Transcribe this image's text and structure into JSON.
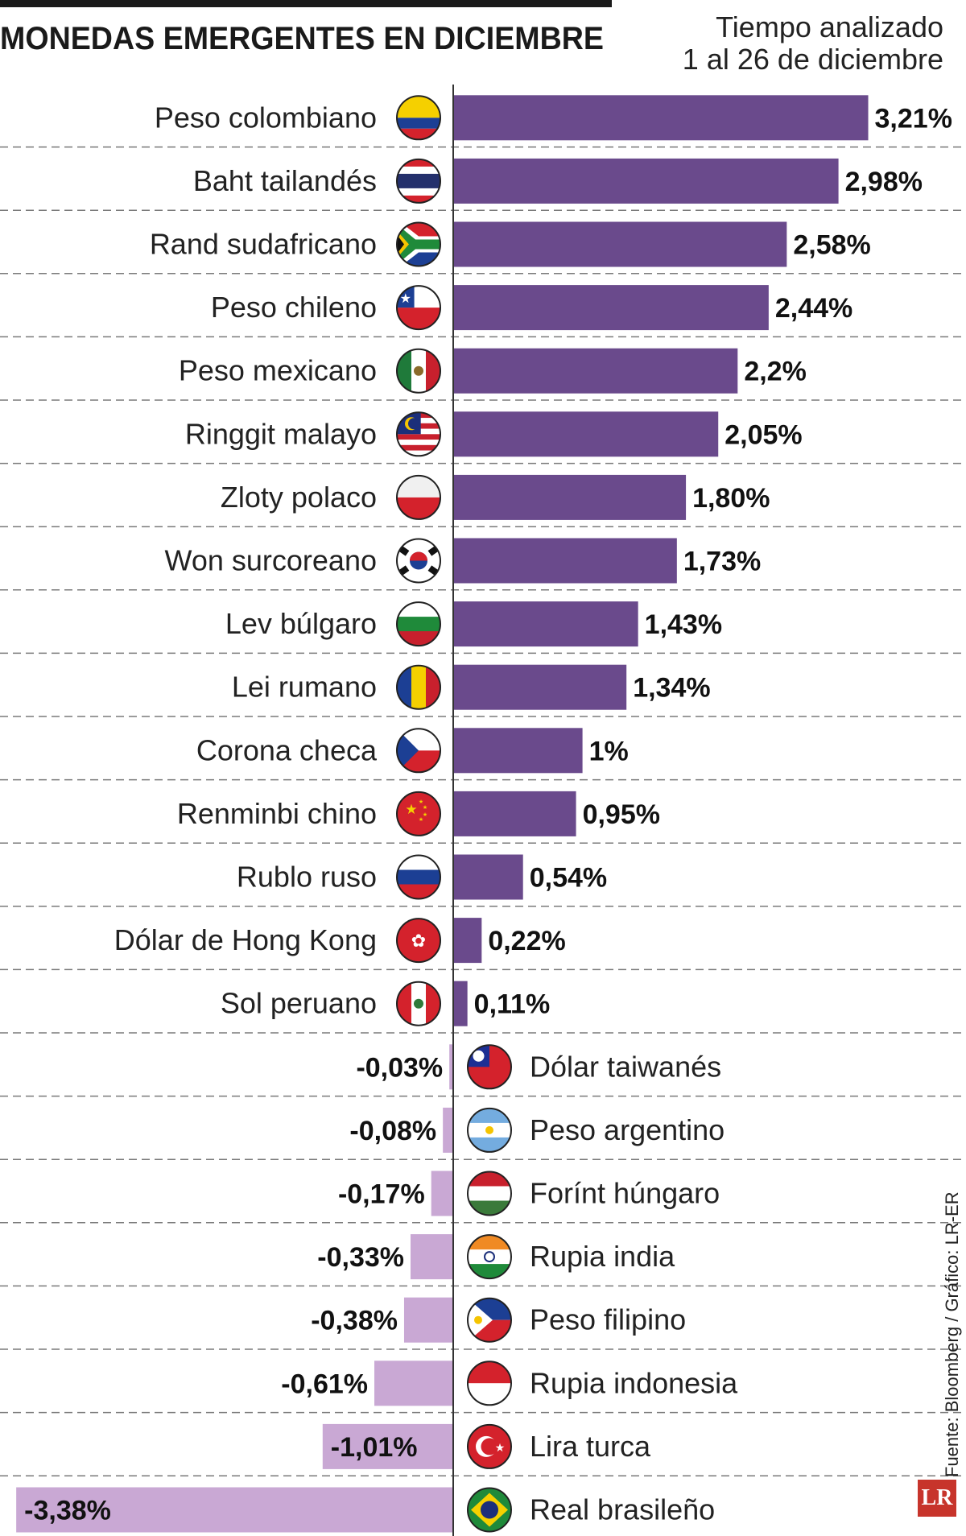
{
  "header": {
    "title": "MONEDAS EMERGENTES EN DICIEMBRE",
    "subtitle_line1": "Tiempo analizado",
    "subtitle_line2": "1 al 26 de diciembre"
  },
  "footer": {
    "source": "Fuente: Bloomberg / Gráfico: LR-ER",
    "logo_text": "LR"
  },
  "colors": {
    "positive": "#6a4a8c",
    "negative": "#c9a8d4",
    "gridline": "#7a7a7a",
    "axis": "#333333"
  },
  "chart_data": {
    "type": "bar",
    "orientation": "horizontal",
    "unit": "%",
    "title": "MONEDAS EMERGENTES EN DICIEMBRE",
    "xlabel": "",
    "ylabel": "",
    "grid": "dashed horizontal separators",
    "categories": [
      "Peso colombiano",
      "Baht tailandés",
      "Rand sudafricano",
      "Peso chileno",
      "Peso mexicano",
      "Ringgit malayo",
      "Zloty polaco",
      "Won surcoreano",
      "Lev búlgaro",
      "Lei rumano",
      "Corona checa",
      "Renminbi chino",
      "Rublo ruso",
      "Dólar de Hong Kong",
      "Sol peruano",
      "Dólar taiwanés",
      "Peso argentino",
      "Forínt húngaro",
      "Rupia india",
      "Peso filipino",
      "Rupia indonesia",
      "Lira turca",
      "Real brasileño"
    ],
    "values": [
      3.21,
      2.98,
      2.58,
      2.44,
      2.2,
      2.05,
      1.8,
      1.73,
      1.43,
      1.34,
      1.0,
      0.95,
      0.54,
      0.22,
      0.11,
      -0.03,
      -0.08,
      -0.17,
      -0.33,
      -0.38,
      -0.61,
      -1.01,
      -3.38
    ],
    "labels": [
      "3,21%",
      "2,98%",
      "2,58%",
      "2,44%",
      "2,2%",
      "2,05%",
      "1,80%",
      "1,73%",
      "1,43%",
      "1,34%",
      "1%",
      "0,95%",
      "0,54%",
      "0,22%",
      "0,11%",
      "-0,03%",
      "-0,08%",
      "-0,17%",
      "-0,33%",
      "-0,38%",
      "-0,61%",
      "-1,01%",
      "-3,38%"
    ],
    "flags": [
      "colombia-flag-icon",
      "thailand-flag-icon",
      "south-africa-flag-icon",
      "chile-flag-icon",
      "mexico-flag-icon",
      "malaysia-flag-icon",
      "poland-flag-icon",
      "south-korea-flag-icon",
      "bulgaria-flag-icon",
      "romania-flag-icon",
      "czech-flag-icon",
      "china-flag-icon",
      "russia-flag-icon",
      "hong-kong-flag-icon",
      "peru-flag-icon",
      "taiwan-flag-icon",
      "argentina-flag-icon",
      "hungary-flag-icon",
      "india-flag-icon",
      "philippines-flag-icon",
      "indonesia-flag-icon",
      "turkey-flag-icon",
      "brazil-flag-icon"
    ]
  }
}
